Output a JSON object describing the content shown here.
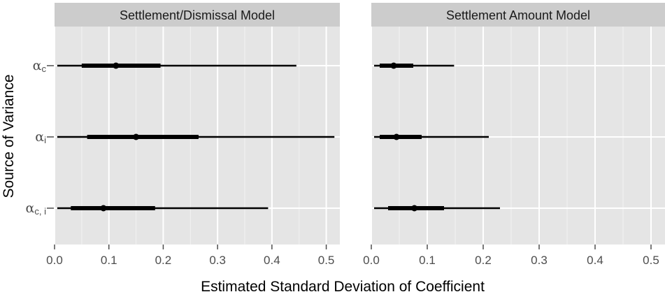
{
  "chart_data": {
    "type": "interval",
    "ylabel": "Source of Variance",
    "xlabel": "Estimated Standard Deviation of Coefficient",
    "xlim": [
      0,
      0.525
    ],
    "xticks": [
      "0.0",
      "0.1",
      "0.2",
      "0.3",
      "0.4",
      "0.5"
    ],
    "grid": true,
    "categories": [
      {
        "symbol": "α",
        "subscript": "c"
      },
      {
        "symbol": "α",
        "subscript": "i"
      },
      {
        "symbol": "α",
        "subscript": "c, i"
      }
    ],
    "panels": [
      {
        "title": "Settlement/Dismissal Model",
        "intervals": [
          {
            "median": 0.113,
            "inner": [
              0.05,
              0.195
            ],
            "outer": [
              0.005,
              0.445
            ]
          },
          {
            "median": 0.15,
            "inner": [
              0.06,
              0.265
            ],
            "outer": [
              0.005,
              0.515
            ]
          },
          {
            "median": 0.09,
            "inner": [
              0.03,
              0.185
            ],
            "outer": [
              0.005,
              0.393
            ]
          }
        ]
      },
      {
        "title": "Settlement Amount Model",
        "intervals": [
          {
            "median": 0.04,
            "inner": [
              0.015,
              0.075
            ],
            "outer": [
              0.005,
              0.148
            ]
          },
          {
            "median": 0.045,
            "inner": [
              0.015,
              0.09
            ],
            "outer": [
              0.005,
              0.21
            ]
          },
          {
            "median": 0.077,
            "inner": [
              0.03,
              0.13
            ],
            "outer": [
              0.005,
              0.23
            ]
          }
        ]
      }
    ],
    "colors": {
      "panel_background": "#e5e5e5",
      "strip_background": "#cccccc",
      "grid_major": "#ffffff",
      "grid_minor": "#f2f2f2",
      "interval": "#000000"
    }
  }
}
